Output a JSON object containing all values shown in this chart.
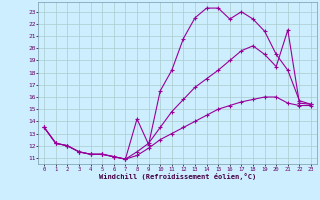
{
  "xlabel": "Windchill (Refroidissement éolien,°C)",
  "background_color": "#cceeff",
  "grid_color": "#aacccc",
  "line_color": "#990099",
  "xlim": [
    -0.5,
    23.5
  ],
  "ylim": [
    10.5,
    23.8
  ],
  "yticks": [
    11,
    12,
    13,
    14,
    15,
    16,
    17,
    18,
    19,
    20,
    21,
    22,
    23
  ],
  "xticks": [
    0,
    1,
    2,
    3,
    4,
    5,
    6,
    7,
    8,
    9,
    10,
    11,
    12,
    13,
    14,
    15,
    16,
    17,
    18,
    19,
    20,
    21,
    22,
    23
  ],
  "line1_x": [
    0,
    1,
    2,
    3,
    4,
    5,
    6,
    7,
    8,
    9,
    10,
    11,
    12,
    13,
    14,
    15,
    16,
    17,
    18,
    19,
    20,
    21,
    22,
    23
  ],
  "line1_y": [
    13.5,
    12.2,
    12.0,
    11.5,
    11.3,
    11.3,
    11.1,
    10.9,
    14.2,
    12.1,
    16.5,
    18.2,
    20.8,
    22.5,
    23.3,
    23.3,
    22.4,
    23.0,
    22.4,
    21.4,
    19.5,
    18.2,
    15.7,
    15.4
  ],
  "line2_x": [
    0,
    1,
    2,
    3,
    4,
    5,
    6,
    7,
    8,
    9,
    10,
    11,
    12,
    13,
    14,
    15,
    16,
    17,
    18,
    19,
    20,
    21,
    22,
    23
  ],
  "line2_y": [
    13.5,
    12.2,
    12.0,
    11.5,
    11.3,
    11.3,
    11.1,
    10.9,
    11.5,
    12.2,
    13.5,
    14.8,
    15.8,
    16.8,
    17.5,
    18.2,
    19.0,
    19.8,
    20.2,
    19.5,
    18.5,
    21.5,
    15.5,
    15.4
  ],
  "line3_x": [
    0,
    1,
    2,
    3,
    4,
    5,
    6,
    7,
    8,
    9,
    10,
    11,
    12,
    13,
    14,
    15,
    16,
    17,
    18,
    19,
    20,
    21,
    22,
    23
  ],
  "line3_y": [
    13.5,
    12.2,
    12.0,
    11.5,
    11.3,
    11.3,
    11.1,
    10.9,
    11.2,
    11.8,
    12.5,
    13.0,
    13.5,
    14.0,
    14.5,
    15.0,
    15.3,
    15.6,
    15.8,
    16.0,
    16.0,
    15.5,
    15.3,
    15.3
  ]
}
